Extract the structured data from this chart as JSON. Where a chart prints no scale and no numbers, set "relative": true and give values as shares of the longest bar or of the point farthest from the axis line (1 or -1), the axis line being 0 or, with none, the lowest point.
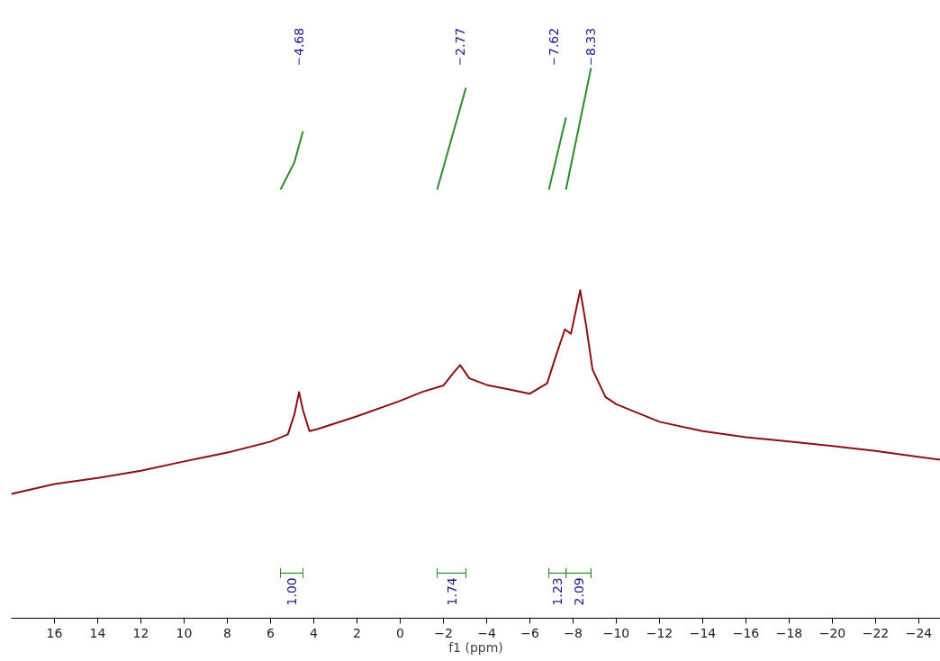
{
  "chart_data": {
    "type": "line",
    "relative": true,
    "xlabel": "f1 (ppm)",
    "xlim": [
      18,
      -25
    ],
    "xticks": [
      16,
      14,
      12,
      10,
      8,
      6,
      4,
      2,
      0,
      -2,
      -4,
      -6,
      -8,
      -10,
      -12,
      -14,
      -16,
      -18,
      -20,
      -22,
      -24
    ],
    "grid": false,
    "series": [
      {
        "color": "#8b1010",
        "x": [
          18,
          16,
          14,
          12,
          10,
          8,
          6,
          5.2,
          4.9,
          4.68,
          4.5,
          4.2,
          3.8,
          2,
          0,
          -1,
          -2,
          -2.4,
          -2.77,
          -3.2,
          -4,
          -5,
          -6,
          -6.8,
          -7.2,
          -7.62,
          -7.9,
          -8.33,
          -8.6,
          -8.9,
          -9.5,
          -10,
          -12,
          -14,
          -16,
          -18,
          -20,
          -22,
          -25
        ],
        "values": [
          0.226,
          0.244,
          0.255,
          0.268,
          0.285,
          0.301,
          0.321,
          0.334,
          0.37,
          0.411,
          0.378,
          0.34,
          0.344,
          0.367,
          0.395,
          0.411,
          0.423,
          0.443,
          0.46,
          0.436,
          0.424,
          0.416,
          0.408,
          0.427,
          0.476,
          0.525,
          0.517,
          0.596,
          0.533,
          0.452,
          0.402,
          0.389,
          0.357,
          0.34,
          0.329,
          0.321,
          0.313,
          0.304,
          0.288
        ]
      },
      {
        "color": "#2e8b2e",
        "x": [
          5.54,
          4.9,
          4.5
        ],
        "values": [
          0.779,
          0.828,
          0.885
        ]
      },
      {
        "color": "#2e8b2e",
        "x": [
          -1.71,
          -3.04
        ],
        "values": [
          0.779,
          0.964
        ]
      },
      {
        "color": "#2e8b2e",
        "x": [
          -6.88,
          -7.67
        ],
        "values": [
          0.779,
          0.91
        ]
      },
      {
        "color": "#2e8b2e",
        "x": [
          -7.67,
          -8.83
        ],
        "values": [
          0.779,
          1.0
        ]
      }
    ],
    "annotations": [
      "4.68",
      "2.77",
      "7.62",
      "8.33",
      "1.00",
      "1.74",
      "1.23",
      "2.09"
    ]
  }
}
